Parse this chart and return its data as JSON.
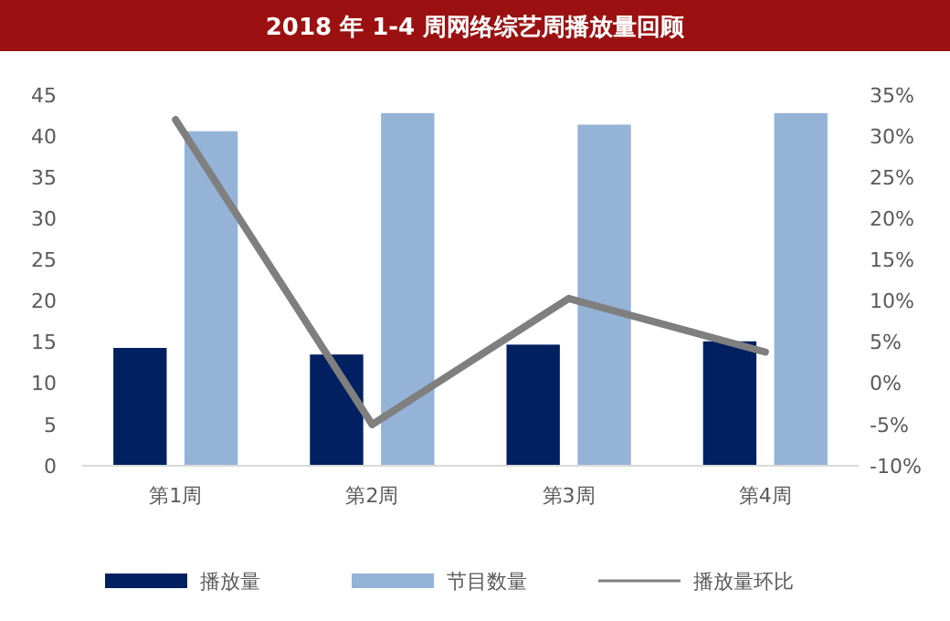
{
  "chart_data": {
    "type": "bar",
    "title": "2018 年 1-4 周网络综艺周播放量回顾",
    "categories": [
      "第1周",
      "第2周",
      "第3周",
      "第4周"
    ],
    "series": [
      {
        "name": "播放量",
        "color": "#002060",
        "values": [
          14.3,
          13.5,
          14.7,
          15.1
        ]
      },
      {
        "name": "节目数量",
        "color": "#95b3d7",
        "values": [
          40.6,
          42.8,
          41.4,
          42.8
        ]
      },
      {
        "name": "播放量环比",
        "type": "line",
        "axis": "y2",
        "color": "#7f7f7f",
        "values": [
          32,
          -5,
          10.3,
          3.8
        ]
      }
    ],
    "ylim": [
      0,
      45
    ],
    "yticks": [
      0,
      5,
      10,
      15,
      20,
      25,
      30,
      35,
      40,
      45
    ],
    "y2lim": [
      -10,
      35
    ],
    "y2ticks": [
      {
        "value": -10,
        "label": "-10%"
      },
      {
        "value": -5,
        "label": "-5%"
      },
      {
        "value": 0,
        "label": "0%"
      },
      {
        "value": 5,
        "label": "5%"
      },
      {
        "value": 10,
        "label": "10%"
      },
      {
        "value": 15,
        "label": "15%"
      },
      {
        "value": 20,
        "label": "20%"
      },
      {
        "value": 25,
        "label": "25%"
      },
      {
        "value": 30,
        "label": "30%"
      },
      {
        "value": 35,
        "label": "35%"
      }
    ],
    "legend": "bottom",
    "marker": "none",
    "line_style": "solid"
  }
}
